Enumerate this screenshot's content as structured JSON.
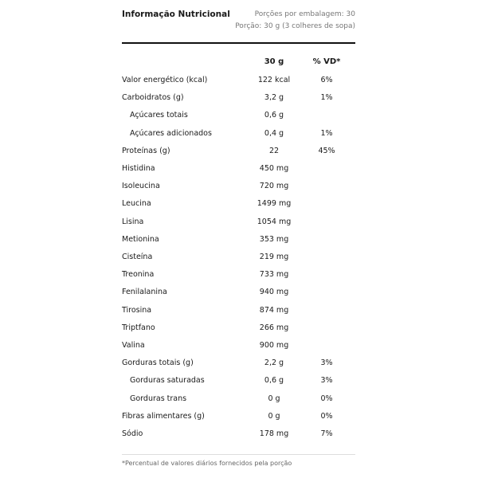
{
  "header": {
    "title": "Informação Nutricional",
    "servings_per_package": "Porções por embalagem: 30",
    "serving_size": "Porção: 30 g (3 colheres de sopa)"
  },
  "columns": {
    "amount": "30 g",
    "dv": "% VD*"
  },
  "rows": [
    {
      "label": "Valor energético (kcal)",
      "value": "122 kcal",
      "dv": "6%",
      "indent": false
    },
    {
      "label": "Carboidratos (g)",
      "value": "3,2 g",
      "dv": "1%",
      "indent": false
    },
    {
      "label": "Açúcares totais",
      "value": "0,6 g",
      "dv": "",
      "indent": true
    },
    {
      "label": "Açúcares adicionados",
      "value": "0,4 g",
      "dv": "1%",
      "indent": true
    },
    {
      "label": "Proteínas (g)",
      "value": "22",
      "dv": "45%",
      "indent": false
    },
    {
      "label": "Histidina",
      "value": "450 mg",
      "dv": "",
      "indent": false
    },
    {
      "label": "Isoleucina",
      "value": "720 mg",
      "dv": "",
      "indent": false
    },
    {
      "label": "Leucina",
      "value": "1499 mg",
      "dv": "",
      "indent": false
    },
    {
      "label": "Lisina",
      "value": "1054 mg",
      "dv": "",
      "indent": false
    },
    {
      "label": "Metionina",
      "value": "353 mg",
      "dv": "",
      "indent": false
    },
    {
      "label": "Cisteína",
      "value": "219 mg",
      "dv": "",
      "indent": false
    },
    {
      "label": "Treonina",
      "value": "733 mg",
      "dv": "",
      "indent": false
    },
    {
      "label": "Fenilalanina",
      "value": "940 mg",
      "dv": "",
      "indent": false
    },
    {
      "label": "Tirosina",
      "value": "874 mg",
      "dv": "",
      "indent": false
    },
    {
      "label": "Triptfano",
      "value": "266 mg",
      "dv": "",
      "indent": false
    },
    {
      "label": "Valina",
      "value": "900 mg",
      "dv": "",
      "indent": false
    },
    {
      "label": "Gorduras totais (g)",
      "value": "2,2 g",
      "dv": "3%",
      "indent": false
    },
    {
      "label": "Gorduras saturadas",
      "value": "0,6 g",
      "dv": "3%",
      "indent": true
    },
    {
      "label": "Gorduras trans",
      "value": "0 g",
      "dv": "0%",
      "indent": true
    },
    {
      "label": "Fibras alimentares (g)",
      "value": "0 g",
      "dv": "0%",
      "indent": false
    },
    {
      "label": "Sódio",
      "value": "178 mg",
      "dv": "7%",
      "indent": false
    }
  ],
  "footnote": "*Percentual de valores diários fornecidos pela porção"
}
